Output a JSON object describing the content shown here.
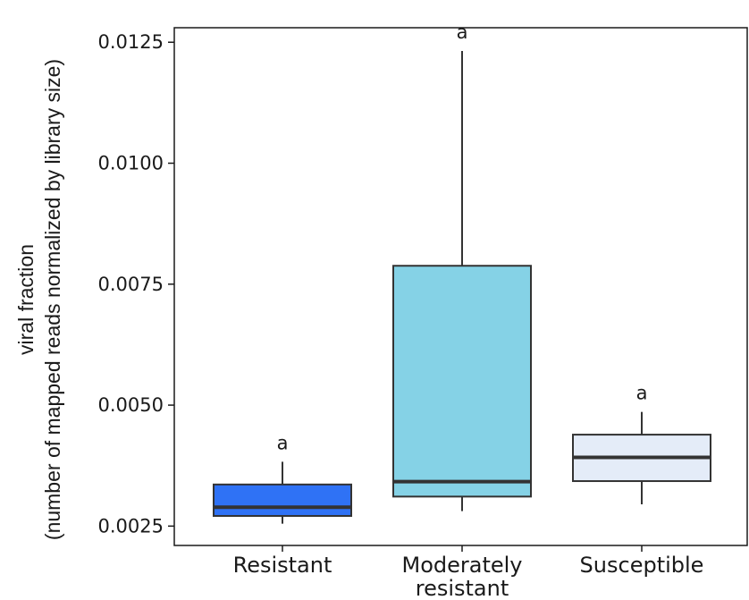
{
  "chart_data": {
    "type": "box",
    "title": "",
    "ylabel_lines": [
      "viral fraction",
      "(number of mapped reads normalized by library size)"
    ],
    "xlabel": "",
    "ylim": [
      0.0021,
      0.0128
    ],
    "y_ticks": [
      {
        "value": 0.0025,
        "label": "0.0025"
      },
      {
        "value": 0.005,
        "label": "0.0050"
      },
      {
        "value": 0.0075,
        "label": "0.0075"
      },
      {
        "value": 0.01,
        "label": "0.0100"
      },
      {
        "value": 0.0125,
        "label": "0.0125"
      }
    ],
    "grid": false,
    "legend": "none",
    "groups": [
      {
        "category_lines": [
          "Resistant"
        ],
        "color": "#2f72f5",
        "min": 0.00255,
        "q1": 0.00271,
        "median": 0.00289,
        "q3": 0.00336,
        "max": 0.00383,
        "significance": "a"
      },
      {
        "category_lines": [
          "Moderately",
          "resistant"
        ],
        "color": "#85d2e6",
        "min": 0.00281,
        "q1": 0.00311,
        "median": 0.00342,
        "q3": 0.00788,
        "max": 0.01232,
        "significance": "a"
      },
      {
        "category_lines": [
          "Susceptible"
        ],
        "color": "#e4ecf8",
        "min": 0.00295,
        "q1": 0.00343,
        "median": 0.00392,
        "q3": 0.00439,
        "max": 0.00486,
        "significance": "a"
      }
    ]
  }
}
